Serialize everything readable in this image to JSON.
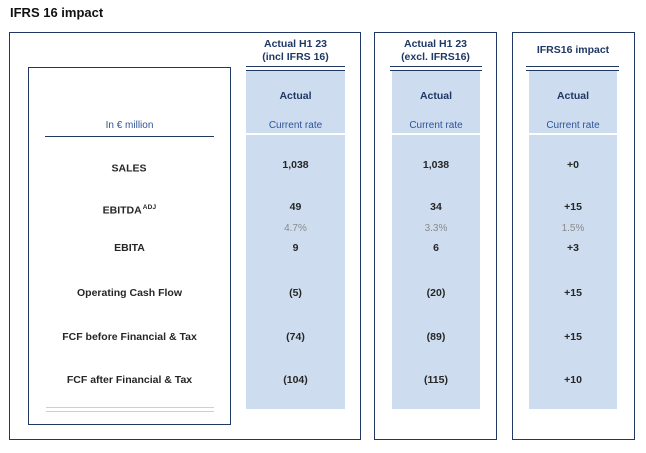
{
  "title": "IFRS 16 impact",
  "row_header": {
    "label": "In € million"
  },
  "columns": [
    {
      "header": [
        "Actual H1 23",
        "(incl IFRS 16)"
      ],
      "subheader": "Actual",
      "rate": "Current rate"
    },
    {
      "header": [
        "Actual H1 23",
        "(excl. IFRS16)"
      ],
      "subheader": "Actual",
      "rate": "Current rate"
    },
    {
      "header": [
        "IFRS16 impact",
        ""
      ],
      "subheader": "Actual",
      "rate": "Current rate"
    }
  ],
  "rows": [
    {
      "label": "SALES",
      "sup": "",
      "values": [
        "1,038",
        "1,038",
        "+0"
      ]
    },
    {
      "label": "EBITDA",
      "sup": "ADJ",
      "values": [
        "49",
        "34",
        "+15"
      ]
    },
    {
      "label": "",
      "sup": "",
      "values": [
        "4.7%",
        "3.3%",
        "1.5%"
      ]
    },
    {
      "label": "EBITA",
      "sup": "",
      "values": [
        "9",
        "6",
        "+3"
      ]
    },
    {
      "label": "Operating Cash Flow",
      "sup": "",
      "values": [
        "(5)",
        "(20)",
        "+15"
      ]
    },
    {
      "label": "FCF before Financial & Tax",
      "sup": "",
      "values": [
        "(74)",
        "(89)",
        "+15"
      ]
    },
    {
      "label": "FCF after Financial & Tax",
      "sup": "",
      "values": [
        "(104)",
        "(115)",
        "+10"
      ]
    }
  ],
  "colors": {
    "border_navy": "#203864",
    "header_text": "#1f3864",
    "accent_blue": "#2f5496",
    "shade_blue": "#cdddef",
    "value_text": "#262626",
    "muted_text": "#8a8a8a",
    "light_line": "#bfd2ea"
  }
}
